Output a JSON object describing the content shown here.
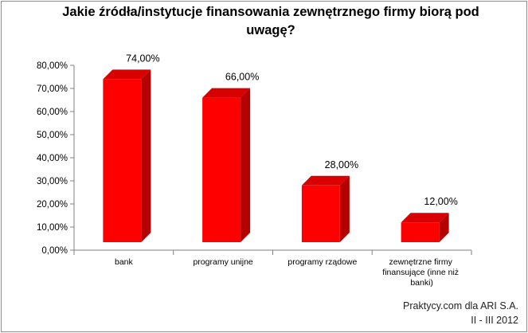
{
  "chart_data": {
    "type": "bar",
    "title": "Jakie źródła/instytucje finansowania zewnętrznego firmy biorą pod uwagę?",
    "categories": [
      "bank",
      "programy unijne",
      "programy rządowe",
      "zewnętrzne firmy finansujące (inne niż banki)"
    ],
    "values": [
      74,
      66,
      28,
      12
    ],
    "data_labels": [
      "74,00%",
      "66,00%",
      "28,00%",
      "12,00%"
    ],
    "y_ticks": [
      "0,00%",
      "10,00%",
      "20,00%",
      "30,00%",
      "40,00%",
      "50,00%",
      "60,00%",
      "70,00%",
      "80,00%"
    ],
    "ylim": [
      0,
      80
    ],
    "grid": false,
    "legend": "none",
    "bar_style": "3d-cylinder-box",
    "colors": {
      "bar_front": "#ff0000",
      "bar_side": "#b50000",
      "bar_top": "#d80000"
    }
  },
  "source": {
    "line1": "Praktycy.com dla ARI S.A.",
    "line2": "II - III 2012"
  }
}
